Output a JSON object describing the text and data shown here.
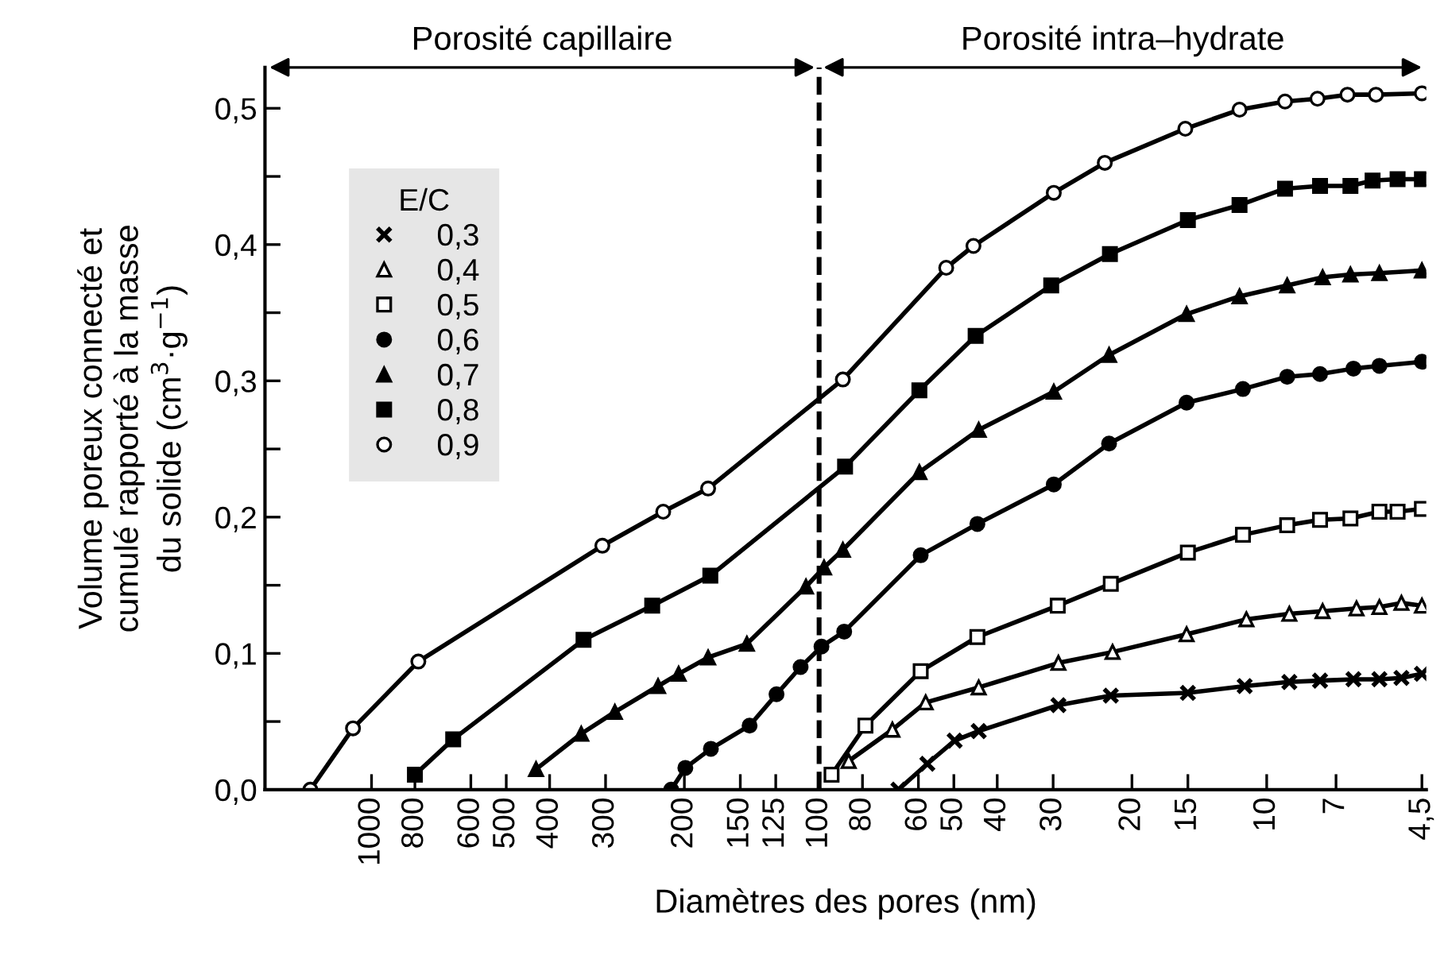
{
  "chart_data": {
    "type": "line",
    "xlabel": "Diamètres des pores (nm)",
    "ylabel": "Volume poreux connecté et\ncumulé rapporté à la masse\ndu solide (cm$^{3}$·g$^{−1}$)",
    "legend_title": "E/C",
    "legend": "top left",
    "log": "x",
    "grid": false,
    "xlim": [
      1730,
      4.4
    ],
    "xticks": [
      1000,
      800,
      600,
      500,
      400,
      300,
      200,
      150,
      125,
      100,
      80,
      60,
      50,
      40,
      30,
      20,
      15,
      10,
      7,
      {
        "value": 4.5,
        "label": "4,5"
      }
    ],
    "ylim": [
      0,
      0.53
    ],
    "yticks": [
      {
        "value": 0,
        "label": "0,0"
      },
      {
        "value": 0.05,
        "label": null
      },
      {
        "value": 0.1,
        "label": "0,1"
      },
      {
        "value": 0.15,
        "label": null
      },
      {
        "value": 0.2,
        "label": "0,2"
      },
      {
        "value": 0.25,
        "label": null
      },
      {
        "value": 0.3,
        "label": "0,3"
      },
      {
        "value": 0.35,
        "label": null
      },
      {
        "value": 0.4,
        "label": "0,4"
      },
      {
        "value": 0.45,
        "label": null
      },
      {
        "value": 0.5,
        "label": "0,5"
      }
    ],
    "ref_lines": [
      {
        "axis": "x",
        "value": 100,
        "line_style": "dashed",
        "color": "#000000"
      }
    ],
    "annotations": [
      "Porosité capillaire",
      "Porosité intra–hydrate"
    ],
    "series": [
      {
        "name": "0,3",
        "color": "#000000",
        "marker": "cross",
        "x": [
          66.5,
          57.3,
          49.8,
          44,
          29.2,
          22.3,
          15,
          11.2,
          8.9,
          7.6,
          6.4,
          5.6,
          5.0,
          4.5
        ],
        "values": [
          0,
          0.019,
          0.036,
          0.043,
          0.062,
          0.069,
          0.071,
          0.076,
          0.079,
          0.08,
          0.081,
          0.081,
          0.082,
          0.085
        ]
      },
      {
        "name": "0,4",
        "color": "#000000",
        "marker": "triangle",
        "colors": [
          "#ffffff",
          "#ffffff",
          "#ffffff",
          "#ffffff",
          "#ffffff",
          "#ffffff",
          "#ffffff",
          "#ffffff",
          "#ffffff",
          "#ffffff",
          "#ffffff",
          "#ffffff",
          "#ffffff",
          "#ffffff"
        ],
        "x": [
          85.9,
          68.6,
          57.8,
          44,
          29.2,
          22.1,
          15.1,
          11.1,
          8.9,
          7.5,
          6.3,
          5.6,
          5.0,
          4.5
        ],
        "values": [
          0.021,
          0.044,
          0.064,
          0.075,
          0.093,
          0.101,
          0.114,
          0.125,
          0.129,
          0.131,
          0.133,
          0.134,
          0.137,
          0.135
        ]
      },
      {
        "name": "0,5",
        "color": "#000000",
        "marker": "square",
        "colors": [
          "#ffffff",
          "#ffffff",
          "#ffffff",
          "#ffffff",
          "#ffffff",
          "#ffffff",
          "#ffffff",
          "#ffffff",
          "#ffffff",
          "#ffffff",
          "#ffffff",
          "#ffffff",
          "#ffffff",
          "#ffffff"
        ],
        "x": [
          93.8,
          78.8,
          59.3,
          44.3,
          29.3,
          22.3,
          15.0,
          11.3,
          9,
          7.6,
          6.5,
          5.6,
          5.1,
          4.5
        ],
        "values": [
          0.011,
          0.047,
          0.087,
          0.112,
          0.135,
          0.151,
          0.174,
          0.187,
          0.194,
          0.198,
          0.199,
          0.204,
          0.204,
          0.206
        ]
      },
      {
        "name": "0,6",
        "color": "#000000",
        "marker": "circle",
        "x": [
          214,
          199,
          174.5,
          143,
          124.5,
          110,
          98.8,
          87.9,
          59.3,
          44.3,
          29.9,
          22.5,
          15.1,
          11.3,
          9,
          7.6,
          6.4,
          5.6,
          4.5
        ],
        "values": [
          0,
          0.016,
          0.03,
          0.047,
          0.07,
          0.09,
          0.105,
          0.116,
          0.172,
          0.195,
          0.224,
          0.254,
          0.284,
          0.294,
          0.303,
          0.305,
          0.309,
          0.311,
          0.314
        ]
      },
      {
        "name": "0,7",
        "color": "#000000",
        "marker": "triangle",
        "x": [
          429,
          340,
          286,
          229,
          206,
          177,
          145,
          107,
          97.5,
          88.5,
          59.7,
          44,
          29.9,
          22.5,
          15.1,
          11.5,
          9,
          7.5,
          6.5,
          5.6,
          4.5
        ],
        "values": [
          0.015,
          0.041,
          0.057,
          0.076,
          0.085,
          0.097,
          0.107,
          0.149,
          0.163,
          0.176,
          0.233,
          0.264,
          0.292,
          0.319,
          0.349,
          0.362,
          0.37,
          0.376,
          0.378,
          0.379,
          0.381
        ]
      },
      {
        "name": "0,8",
        "color": "#000000",
        "marker": "square",
        "x": [
          800,
          657,
          336,
          236,
          175,
          87.5,
          59.7,
          44.7,
          30.3,
          22.4,
          15,
          11.5,
          9.1,
          7.6,
          6.5,
          5.8,
          5.1,
          4.5
        ],
        "values": [
          0.011,
          0.037,
          0.11,
          0.135,
          0.157,
          0.237,
          0.293,
          0.333,
          0.37,
          0.393,
          0.418,
          0.429,
          0.441,
          0.443,
          0.443,
          0.447,
          0.448,
          0.448
        ]
      },
      {
        "name": "0,9",
        "color": "#000000",
        "marker": "circle",
        "colors": [
          "#ffffff",
          "#ffffff",
          "#ffffff",
          "#ffffff",
          "#ffffff",
          "#ffffff",
          "#ffffff",
          "#ffffff",
          "#ffffff",
          "#ffffff",
          "#ffffff",
          "#ffffff",
          "#ffffff",
          "#ffffff",
          "#ffffff",
          "#ffffff",
          "#ffffff",
          "#ffffff"
        ],
        "x": [
          1370,
          1100,
          786,
          305,
          223,
          177,
          88.5,
          52,
          45.2,
          29.9,
          23,
          15.2,
          11.5,
          9.1,
          7.7,
          6.6,
          5.7,
          4.5
        ],
        "values": [
          0,
          0.045,
          0.094,
          0.179,
          0.204,
          0.221,
          0.301,
          0.383,
          0.399,
          0.438,
          0.46,
          0.485,
          0.499,
          0.505,
          0.507,
          0.51,
          0.51,
          0.511
        ]
      }
    ]
  }
}
